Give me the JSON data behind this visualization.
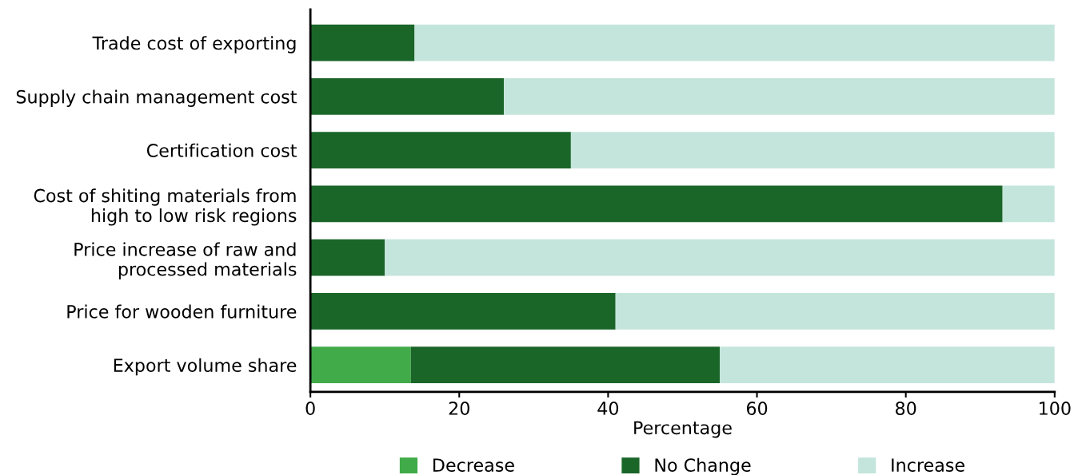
{
  "chart_data": {
    "type": "bar",
    "orientation": "horizontal",
    "stacked": true,
    "xlabel": "Percentage",
    "categories": [
      "Trade cost of exporting",
      "Supply chain management cost",
      "Certification cost",
      "Cost of shiting materials from\nhigh to low risk regions",
      "Price increase of raw and\nprocessed materials",
      "Price for wooden furniture",
      "Export volume share"
    ],
    "series": [
      {
        "name": "Decrease",
        "color": "#40ab48",
        "values": [
          0,
          0,
          0,
          0,
          0,
          0,
          13.5
        ]
      },
      {
        "name": "No Change",
        "color": "#1a6629",
        "values": [
          14,
          26,
          35,
          93,
          10,
          41,
          41.5
        ]
      },
      {
        "name": "Increase",
        "color": "#c4e5db",
        "values": [
          86,
          74,
          65,
          7,
          90,
          59,
          45
        ]
      }
    ],
    "xlim": [
      0,
      100
    ],
    "xticks": [
      0,
      20,
      40,
      60,
      80,
      100
    ],
    "grid": false,
    "legend": "bottom"
  }
}
